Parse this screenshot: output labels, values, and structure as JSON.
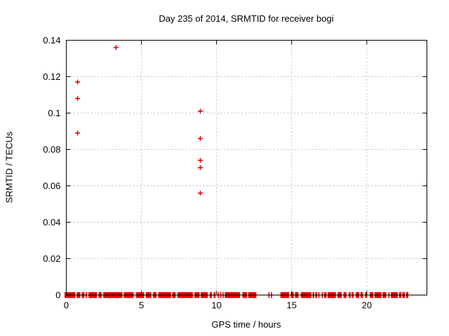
{
  "chart_data": {
    "type": "scatter",
    "title": "Day 235 of 2014, SRMTID for receiver bogi",
    "xlabel": "GPS time / hours",
    "ylabel": "SRMTID / TECUs",
    "xlim": [
      0,
      24
    ],
    "ylim": [
      0,
      0.14
    ],
    "grid": true,
    "legend": "none",
    "marker": {
      "shape": "plus",
      "size": 7
    },
    "xticks": {
      "values": [
        0,
        5,
        10,
        15,
        20
      ],
      "labels": [
        "0",
        "5",
        "10",
        "15",
        "20"
      ]
    },
    "yticks": {
      "values": [
        0,
        0.02,
        0.04,
        0.06,
        0.08,
        0.1,
        0.12,
        0.14
      ],
      "labels": [
        "0",
        "0.02",
        "0.04",
        "0.06",
        "0.08",
        "0.1",
        "0.12",
        "0.14"
      ]
    },
    "series": [
      {
        "points": [
          [
            0.75,
            0.117
          ],
          [
            0.75,
            0.108
          ],
          [
            0.75,
            0.089
          ],
          [
            3.31,
            0.136
          ],
          [
            8.92,
            0.101
          ],
          [
            8.92,
            0.086
          ],
          [
            8.92,
            0.074
          ],
          [
            8.92,
            0.07
          ],
          [
            8.92,
            0.056
          ]
        ]
      }
    ],
    "zero_band_segments": [
      [
        0.0,
        0.6
      ],
      [
        0.7,
        0.93
      ],
      [
        1.03,
        1.21
      ],
      [
        1.29,
        1.37
      ],
      [
        1.48,
        2.04
      ],
      [
        2.15,
        2.35
      ],
      [
        2.46,
        3.73
      ],
      [
        3.83,
        4.48
      ],
      [
        4.64,
        5.18
      ],
      [
        5.29,
        5.65
      ],
      [
        5.77,
        6.0
      ],
      [
        6.12,
        6.97
      ],
      [
        7.05,
        7.28
      ],
      [
        7.39,
        8.42
      ],
      [
        8.53,
        8.87
      ],
      [
        8.95,
        9.42
      ],
      [
        9.54,
        9.7
      ],
      [
        9.8,
        9.93
      ],
      [
        10.08,
        10.16
      ],
      [
        10.24,
        10.32
      ],
      [
        10.4,
        10.47
      ],
      [
        10.55,
        11.56
      ],
      [
        11.72,
        12.03
      ],
      [
        12.11,
        12.65
      ],
      [
        13.45,
        13.5
      ],
      [
        13.62,
        13.67
      ],
      [
        14.25,
        14.83
      ],
      [
        14.94,
        15.14
      ],
      [
        15.22,
        15.45
      ],
      [
        15.61,
        16.31
      ],
      [
        16.39,
        16.5
      ],
      [
        16.57,
        16.7
      ],
      [
        16.77,
        16.85
      ],
      [
        17.0,
        17.09
      ],
      [
        17.16,
        17.32
      ],
      [
        17.4,
        17.94
      ],
      [
        18.05,
        18.33
      ],
      [
        18.45,
        18.64
      ],
      [
        18.8,
        18.92
      ],
      [
        19.0,
        19.11
      ],
      [
        19.27,
        19.5
      ],
      [
        19.58,
        19.73
      ],
      [
        19.89,
        20.02
      ],
      [
        20.2,
        20.43
      ],
      [
        20.51,
        20.97
      ],
      [
        21.05,
        21.29
      ],
      [
        21.44,
        21.52
      ],
      [
        21.6,
        22.06
      ],
      [
        22.14,
        22.3
      ],
      [
        22.37,
        22.53
      ],
      [
        22.61,
        22.76
      ]
    ]
  },
  "colors": {
    "marker": "#e10000",
    "grid": "#bdbdbd",
    "axis": "#000000",
    "background": "#ffffff",
    "text": "#000000"
  }
}
